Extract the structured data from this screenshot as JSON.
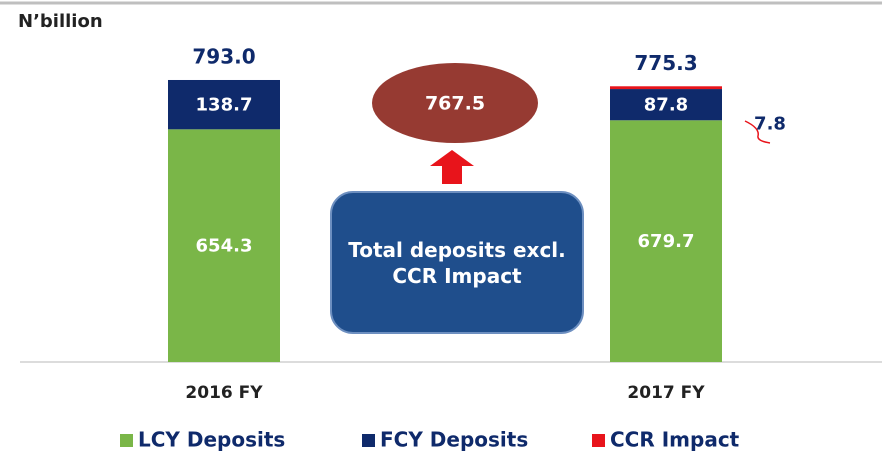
{
  "chart_data": {
    "type": "bar",
    "stacked": true,
    "unit_label": "N’billion",
    "categories": [
      "2016 FY",
      "2017 FY"
    ],
    "series": [
      {
        "name": "LCY Deposits",
        "color": "#7ab648",
        "values": [
          654.3,
          679.7
        ]
      },
      {
        "name": "FCY Deposits",
        "color": "#0f2a6b",
        "values": [
          138.7,
          87.8
        ]
      },
      {
        "name": "CCR Impact",
        "color": "#e8141b",
        "values": [
          null,
          7.8
        ]
      }
    ],
    "totals": [
      793,
      775.3
    ],
    "total_labels": [
      "793.0",
      "775.3"
    ],
    "callout": {
      "value": 767.5,
      "label": "Total deposits excl. CCR Impact"
    },
    "ylim": [
      0,
      800
    ],
    "legend": "bottom"
  }
}
